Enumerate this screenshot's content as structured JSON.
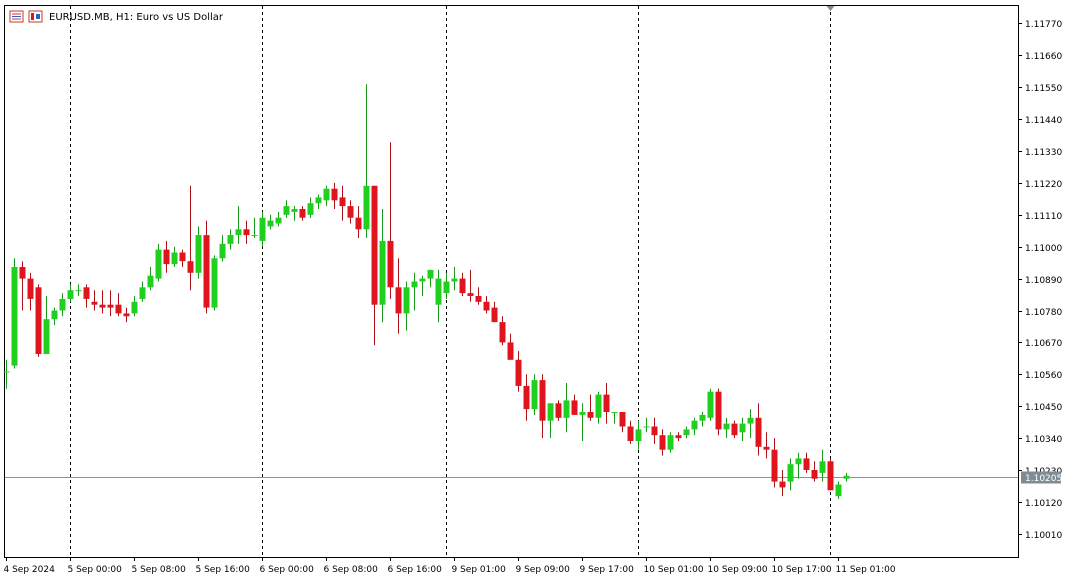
{
  "header": {
    "symbol_title": "EURUSD.MB, H1:  Euro vs US Dollar"
  },
  "colors": {
    "bull": "#1fd01f",
    "bear": "#e0141c",
    "grid": "#000000",
    "current_price_line": "#7a9aa8",
    "current_price_label_bg": "#7f8c94"
  },
  "chart_data": {
    "type": "candlestick",
    "timeframe": "H1",
    "symbol": "EURUSD.MB",
    "ylim": [
      1.0993,
      1.1183
    ],
    "y_ticks": [
      "1.11770",
      "1.11660",
      "1.11550",
      "1.11440",
      "1.11330",
      "1.11220",
      "1.11110",
      "1.11000",
      "1.10890",
      "1.10780",
      "1.10670",
      "1.10560",
      "1.10450",
      "1.10340",
      "1.10230",
      "1.10205",
      "1.10120",
      "1.10010"
    ],
    "current_price": "1.10205",
    "x_labels": [
      "4 Sep 2024",
      "5 Sep 00:00",
      "5 Sep 08:00",
      "5 Sep 16:00",
      "6 Sep 00:00",
      "6 Sep 08:00",
      "6 Sep 16:00",
      "9 Sep 01:00",
      "9 Sep 09:00",
      "9 Sep 17:00",
      "10 Sep 01:00",
      "10 Sep 09:00",
      "10 Sep 17:00",
      "11 Sep 01:00"
    ],
    "x_label_bar_index": [
      0,
      8,
      16,
      24,
      32,
      40,
      48,
      56,
      64,
      72,
      80,
      88,
      96,
      104
    ],
    "period_separators_bar_index": [
      8,
      32,
      55,
      79,
      103
    ],
    "candles": [
      [
        1.1057,
        1.1061,
        1.1051,
        1.1057
      ],
      [
        1.1059,
        1.1096,
        1.1058,
        1.1093
      ],
      [
        1.1093,
        1.1095,
        1.1078,
        1.1089
      ],
      [
        1.1089,
        1.1091,
        1.1078,
        1.1082
      ],
      [
        1.1086,
        1.1087,
        1.1062,
        1.1063
      ],
      [
        1.1063,
        1.1083,
        1.1063,
        1.1075
      ],
      [
        1.1075,
        1.1079,
        1.1073,
        1.1078
      ],
      [
        1.1078,
        1.1084,
        1.1076,
        1.1082
      ],
      [
        1.1082,
        1.1087,
        1.1081,
        1.1085
      ],
      [
        1.1085,
        1.1087,
        1.1083,
        1.1085
      ],
      [
        1.1086,
        1.1087,
        1.1079,
        1.1082
      ],
      [
        1.1081,
        1.1085,
        1.1078,
        1.108
      ],
      [
        1.108,
        1.1085,
        1.1077,
        1.1079
      ],
      [
        1.108,
        1.1085,
        1.1076,
        1.1079
      ],
      [
        1.108,
        1.1084,
        1.1076,
        1.1077
      ],
      [
        1.1077,
        1.1079,
        1.1074,
        1.1076
      ],
      [
        1.1077,
        1.1083,
        1.1076,
        1.1081
      ],
      [
        1.1082,
        1.1088,
        1.1081,
        1.1086
      ],
      [
        1.1086,
        1.1093,
        1.1085,
        1.109
      ],
      [
        1.1089,
        1.1101,
        1.1088,
        1.1099
      ],
      [
        1.1099,
        1.1102,
        1.1091,
        1.1094
      ],
      [
        1.1094,
        1.11,
        1.1093,
        1.1098
      ],
      [
        1.1098,
        1.1099,
        1.1093,
        1.1095
      ],
      [
        1.1095,
        1.1121,
        1.1085,
        1.1091
      ],
      [
        1.1091,
        1.1107,
        1.1089,
        1.1104
      ],
      [
        1.1104,
        1.1109,
        1.1077,
        1.1079
      ],
      [
        1.1079,
        1.1097,
        1.1078,
        1.1096
      ],
      [
        1.1096,
        1.1104,
        1.1095,
        1.1101
      ],
      [
        1.1101,
        1.1106,
        1.1099,
        1.1104
      ],
      [
        1.1104,
        1.1114,
        1.1101,
        1.1106
      ],
      [
        1.1106,
        1.1109,
        1.1101,
        1.1104
      ],
      [
        1.1104,
        1.111,
        1.1103,
        1.1104
      ],
      [
        1.1102,
        1.1112,
        1.11,
        1.111
      ],
      [
        1.1107,
        1.1111,
        1.1106,
        1.1109
      ],
      [
        1.1108,
        1.1112,
        1.1107,
        1.111
      ],
      [
        1.1111,
        1.1116,
        1.111,
        1.1114
      ],
      [
        1.1112,
        1.1114,
        1.1109,
        1.1113
      ],
      [
        1.1113,
        1.1114,
        1.1109,
        1.111
      ],
      [
        1.1111,
        1.1117,
        1.111,
        1.1115
      ],
      [
        1.1115,
        1.1118,
        1.1113,
        1.1117
      ],
      [
        1.1116,
        1.1121,
        1.1114,
        1.112
      ],
      [
        1.112,
        1.1122,
        1.1113,
        1.1116
      ],
      [
        1.1117,
        1.1121,
        1.1109,
        1.1114
      ],
      [
        1.1114,
        1.1116,
        1.1108,
        1.111
      ],
      [
        1.111,
        1.1114,
        1.1103,
        1.1106
      ],
      [
        1.1106,
        1.1156,
        1.1103,
        1.1121
      ],
      [
        1.1121,
        1.1121,
        1.1066,
        1.108
      ],
      [
        1.108,
        1.1113,
        1.1074,
        1.1102
      ],
      [
        1.1102,
        1.1136,
        1.1082,
        1.1086
      ],
      [
        1.1086,
        1.1096,
        1.107,
        1.1077
      ],
      [
        1.1077,
        1.1088,
        1.1071,
        1.1086
      ],
      [
        1.1086,
        1.1091,
        1.1078,
        1.1088
      ],
      [
        1.1088,
        1.109,
        1.1083,
        1.1089
      ],
      [
        1.1089,
        1.1092,
        1.1086,
        1.1092
      ],
      [
        1.108,
        1.1092,
        1.1074,
        1.1089
      ],
      [
        1.1084,
        1.1091,
        1.1082,
        1.1088
      ],
      [
        1.1088,
        1.1093,
        1.1085,
        1.1089
      ],
      [
        1.1089,
        1.1091,
        1.1083,
        1.1084
      ],
      [
        1.1084,
        1.1092,
        1.1081,
        1.1083
      ],
      [
        1.1083,
        1.1086,
        1.108,
        1.1081
      ],
      [
        1.1081,
        1.1083,
        1.1077,
        1.1078
      ],
      [
        1.1079,
        1.1081,
        1.1074,
        1.1074
      ],
      [
        1.1074,
        1.1076,
        1.1066,
        1.1067
      ],
      [
        1.1067,
        1.107,
        1.1061,
        1.1061
      ],
      [
        1.1061,
        1.1064,
        1.105,
        1.1052
      ],
      [
        1.1052,
        1.1056,
        1.104,
        1.1044
      ],
      [
        1.1044,
        1.1056,
        1.1042,
        1.1054
      ],
      [
        1.1054,
        1.1056,
        1.1034,
        1.104
      ],
      [
        1.104,
        1.1046,
        1.1034,
        1.1046
      ],
      [
        1.1046,
        1.1047,
        1.104,
        1.1041
      ],
      [
        1.1041,
        1.1053,
        1.1036,
        1.1047
      ],
      [
        1.1047,
        1.1049,
        1.1042,
        1.1042
      ],
      [
        1.1042,
        1.1046,
        1.1033,
        1.1043
      ],
      [
        1.1043,
        1.1049,
        1.104,
        1.1041
      ],
      [
        1.1041,
        1.105,
        1.1039,
        1.1049
      ],
      [
        1.1049,
        1.1053,
        1.1039,
        1.1043
      ],
      [
        1.1043,
        1.1043,
        1.1039,
        1.1043
      ],
      [
        1.1043,
        1.1043,
        1.1036,
        1.1038
      ],
      [
        1.1038,
        1.104,
        1.1032,
        1.1033
      ],
      [
        1.1033,
        1.104,
        1.103,
        1.1037
      ],
      [
        1.1038,
        1.1041,
        1.1036,
        1.1038
      ],
      [
        1.1038,
        1.1041,
        1.1032,
        1.1035
      ],
      [
        1.1035,
        1.1037,
        1.1028,
        1.103
      ],
      [
        1.103,
        1.1036,
        1.1029,
        1.1035
      ],
      [
        1.1035,
        1.1036,
        1.1033,
        1.1034
      ],
      [
        1.1035,
        1.1038,
        1.1034,
        1.1037
      ],
      [
        1.1037,
        1.1041,
        1.1035,
        1.104
      ],
      [
        1.104,
        1.1043,
        1.1038,
        1.1042
      ],
      [
        1.1041,
        1.1051,
        1.104,
        1.105
      ],
      [
        1.105,
        1.1051,
        1.1035,
        1.1037
      ],
      [
        1.1037,
        1.1041,
        1.1034,
        1.1039
      ],
      [
        1.1039,
        1.104,
        1.1034,
        1.1035
      ],
      [
        1.1036,
        1.1041,
        1.1033,
        1.1039
      ],
      [
        1.1039,
        1.1044,
        1.1034,
        1.1041
      ],
      [
        1.1041,
        1.1046,
        1.1028,
        1.1031
      ],
      [
        1.1031,
        1.1036,
        1.1027,
        1.103
      ],
      [
        1.103,
        1.1034,
        1.1017,
        1.1019
      ],
      [
        1.1019,
        1.1023,
        1.1014,
        1.1017
      ],
      [
        1.1019,
        1.1027,
        1.1016,
        1.1025
      ],
      [
        1.1025,
        1.1029,
        1.102,
        1.1027
      ],
      [
        1.1027,
        1.1029,
        1.1022,
        1.1023
      ],
      [
        1.1023,
        1.1026,
        1.1019,
        1.102
      ],
      [
        1.1022,
        1.103,
        1.1019,
        1.1026
      ],
      [
        1.1026,
        1.1027,
        1.1016,
        1.1016
      ],
      [
        1.1014,
        1.1019,
        1.1013,
        1.1018
      ],
      [
        1.102,
        1.1022,
        1.1019,
        1.1021
      ]
    ]
  }
}
